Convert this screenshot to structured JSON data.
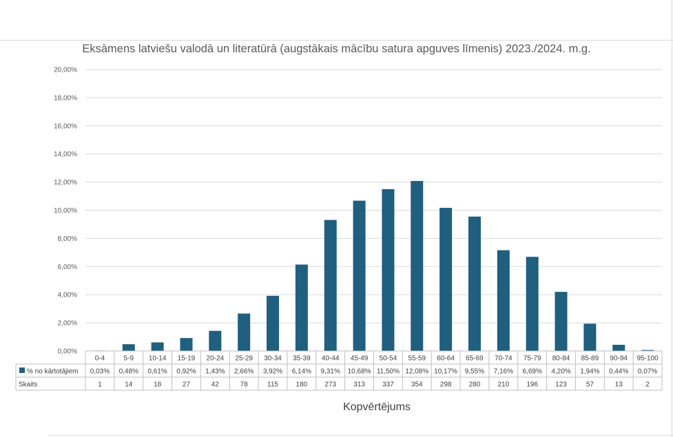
{
  "chart_data": {
    "type": "bar",
    "title": "Eksāmens latviešu valodā un literatūrā (augstākais mācību satura apguves līmenis) 2023./2024. m.g.",
    "xlabel": "Kopvērtējums",
    "ylabel": "",
    "ylim": [
      0,
      20
    ],
    "yticks": [
      "0,00%",
      "2,00%",
      "4,00%",
      "6,00%",
      "8,00%",
      "10,00%",
      "12,00%",
      "14,00%",
      "16,00%",
      "18,00%",
      "20,00%"
    ],
    "grid": true,
    "bar_color": "#1f5f7f",
    "categories": [
      "0-4",
      "5-9",
      "10-14",
      "15-19",
      "20-24",
      "25-29",
      "30-34",
      "35-39",
      "40-44",
      "45-49",
      "50-54",
      "55-59",
      "60-64",
      "65-69",
      "70-74",
      "75-79",
      "80-84",
      "85-89",
      "90-94",
      "95-100"
    ],
    "series": [
      {
        "name": "% no kārtotājiem",
        "values": [
          0.03,
          0.48,
          0.61,
          0.92,
          1.43,
          2.66,
          3.92,
          6.14,
          9.31,
          10.68,
          11.5,
          12.08,
          10.17,
          9.55,
          7.16,
          6.69,
          4.2,
          1.94,
          0.44,
          0.07
        ],
        "labels": [
          "0,03%",
          "0,48%",
          "0,61%",
          "0,92%",
          "1,43%",
          "2,66%",
          "3,92%",
          "6,14%",
          "9,31%",
          "10,68%",
          "11,50%",
          "12,08%",
          "10,17%",
          "9,55%",
          "7,16%",
          "6,69%",
          "4,20%",
          "1,94%",
          "0,44%",
          "0,07%"
        ]
      }
    ],
    "table": {
      "row_labels": [
        "% no kārtotājiem",
        "Skaits"
      ],
      "counts": [
        "1",
        "14",
        "18",
        "27",
        "42",
        "78",
        "115",
        "180",
        "273",
        "313",
        "337",
        "354",
        "298",
        "280",
        "210",
        "196",
        "123",
        "57",
        "13",
        "2"
      ]
    }
  }
}
